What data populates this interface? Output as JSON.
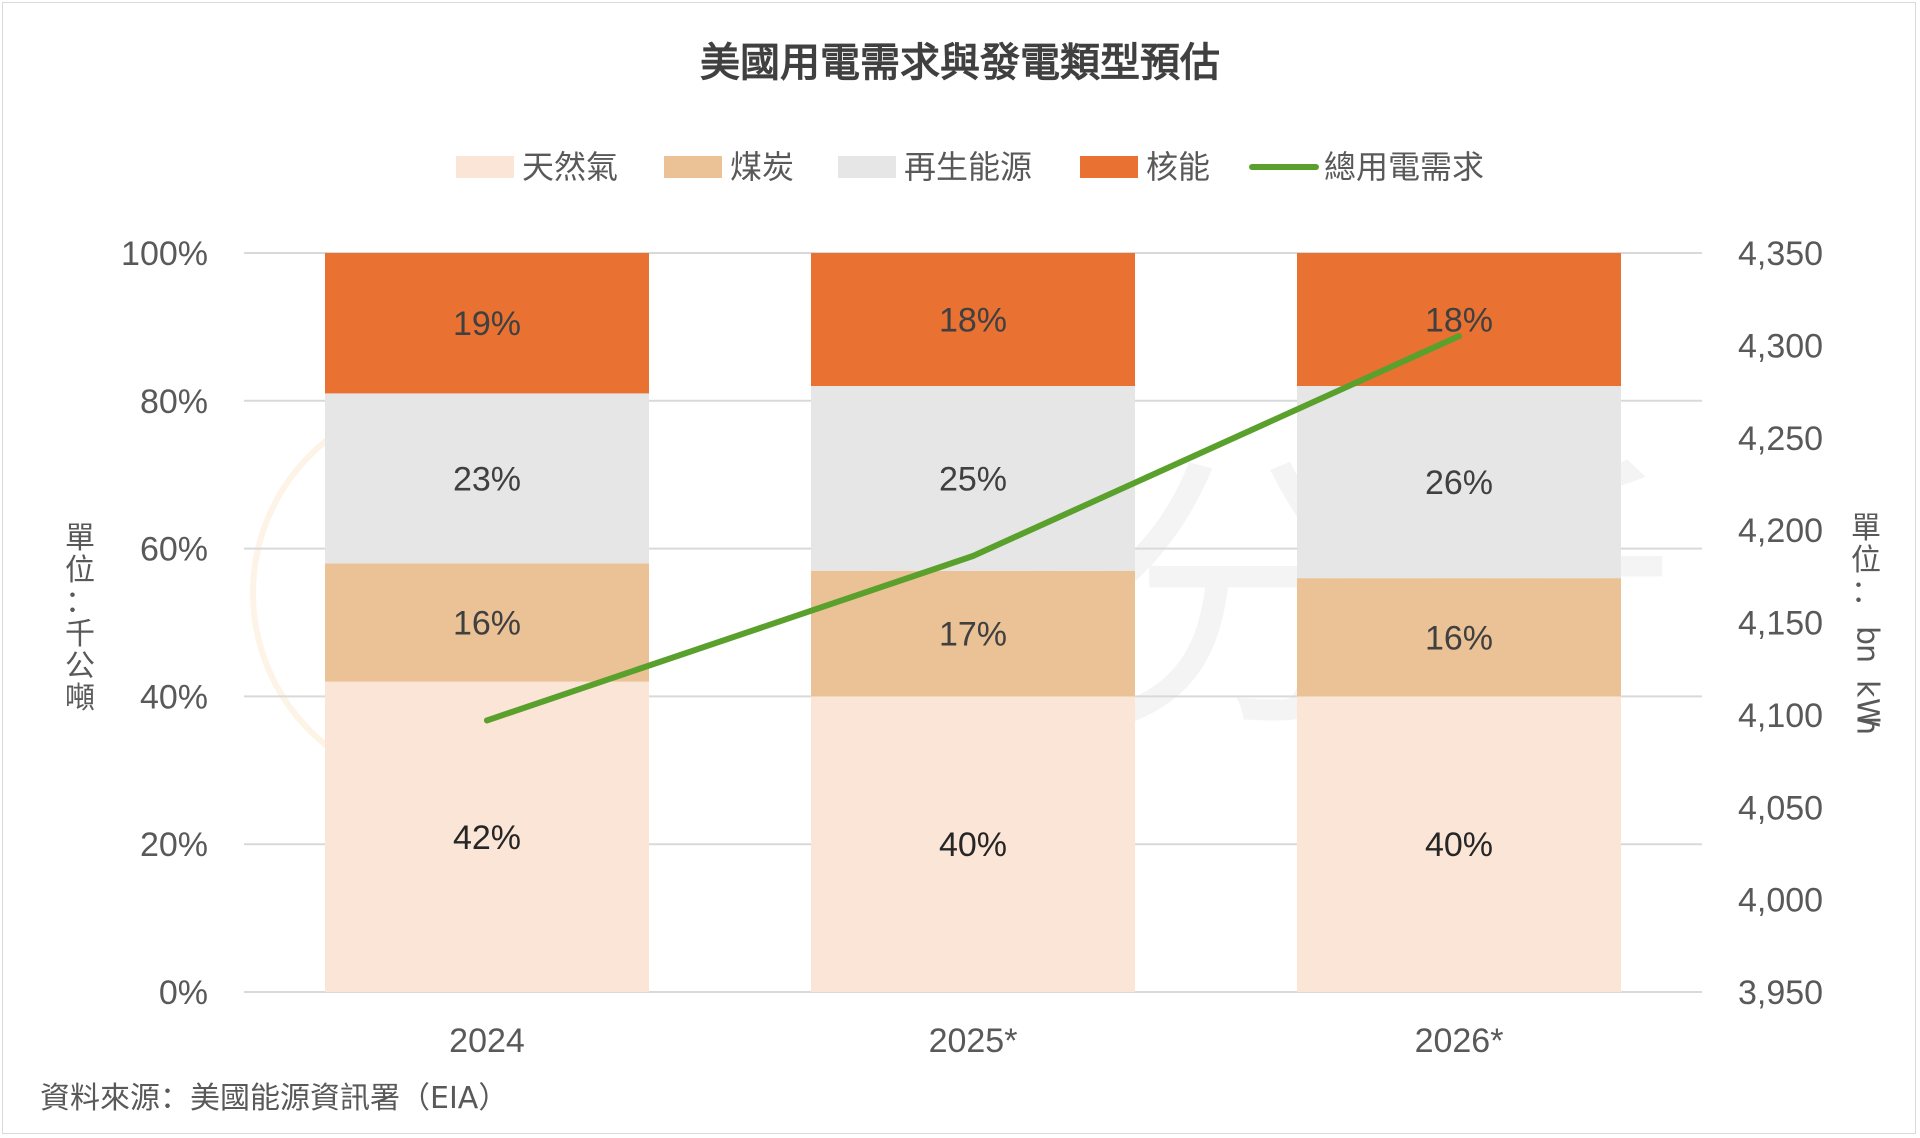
{
  "chart_data": {
    "type": "bar",
    "stacked": true,
    "title": "美國用電需求與發電類型預估",
    "categories": [
      "2024",
      "2025*",
      "2026*"
    ],
    "series": [
      {
        "name": "天然氣",
        "values": [
          42,
          40,
          40
        ],
        "labels": [
          "42%",
          "40%",
          "40%"
        ],
        "color": "#fbe5d6"
      },
      {
        "name": "煤炭",
        "values": [
          16,
          17,
          16
        ],
        "labels": [
          "16%",
          "17%",
          "16%"
        ],
        "color": "#ebc196"
      },
      {
        "name": "再生能源",
        "values": [
          23,
          25,
          26
        ],
        "labels": [
          "23%",
          "25%",
          "26%"
        ],
        "color": "#e6e6e6"
      },
      {
        "name": "核能",
        "values": [
          19,
          18,
          18
        ],
        "labels": [
          "19%",
          "18%",
          "18%"
        ],
        "color": "#e97132"
      }
    ],
    "line_series": {
      "name": "總用電需求",
      "values": [
        4097,
        4186,
        4305
      ],
      "color": "#5aa02c",
      "axis": "right"
    },
    "ylim": [
      0,
      100
    ],
    "y_ticks": [
      "0%",
      "20%",
      "40%",
      "60%",
      "80%",
      "100%"
    ],
    "y2lim": [
      3950,
      4350
    ],
    "y2_ticks": [
      "3,950",
      "4,000",
      "4,050",
      "4,100",
      "4,150",
      "4,200",
      "4,250",
      "4,300",
      "4,350"
    ],
    "ylabel": "單位：千公噸",
    "y2label": "單位：bn kWh",
    "legend_position": "top",
    "grid": true
  },
  "source_note": "資料來源：美國能源資訊署（EIA）",
  "watermark": {
    "text": "優分析"
  }
}
